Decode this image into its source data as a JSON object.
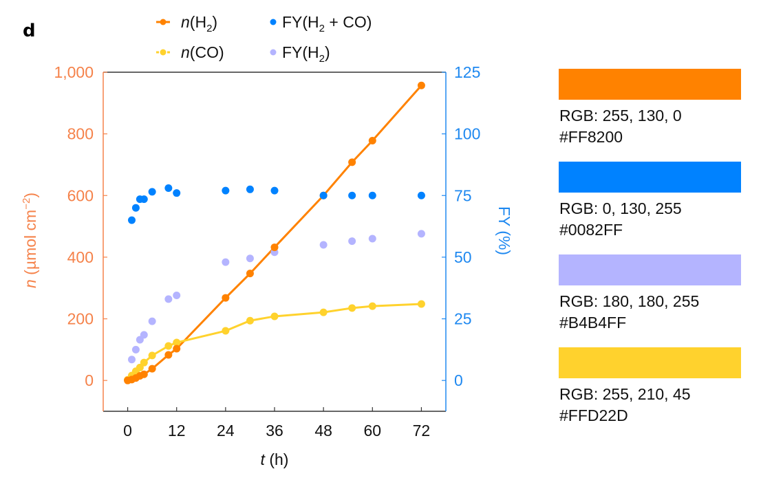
{
  "panel_label": "d",
  "chart_data": {
    "type": "line",
    "title": "",
    "xlabel": "t (h)",
    "xlabel_parts": {
      "italic": "t",
      "rest": " (h)"
    },
    "ylabel_left": "n (µmol cm−2)",
    "ylabel_right": "FY (%)",
    "xlim": [
      -6,
      78
    ],
    "ylim_left": [
      -100,
      1000
    ],
    "ylim_right": [
      -12.5,
      125
    ],
    "xticks": [
      0,
      12,
      24,
      36,
      48,
      60,
      72
    ],
    "yticks_left": [
      0,
      200,
      400,
      600,
      800,
      1000
    ],
    "yticks_left_labels": [
      "0",
      "200",
      "400",
      "600",
      "800",
      "1,000"
    ],
    "yticks_right": [
      0,
      25,
      50,
      75,
      100,
      125
    ],
    "grid": false,
    "legend_position": "top",
    "series": [
      {
        "name": "n(H2)",
        "axis": "left",
        "style": "line-marker",
        "color": "#FF8200",
        "x": [
          0,
          1,
          2,
          3,
          4,
          6,
          10,
          12,
          24,
          30,
          36,
          48,
          55,
          60,
          72
        ],
        "values": [
          0,
          3,
          8,
          15,
          20,
          38,
          83,
          103,
          268,
          347,
          432,
          600,
          708,
          778,
          957
        ]
      },
      {
        "name": "n(CO)",
        "axis": "left",
        "style": "line-marker",
        "color": "#FFD22D",
        "x": [
          0,
          1,
          2,
          3,
          4,
          6,
          10,
          12,
          24,
          30,
          36,
          48,
          55,
          60,
          72
        ],
        "values": [
          2,
          16,
          30,
          42,
          58,
          81,
          112,
          123,
          161,
          194,
          208,
          221,
          235,
          241,
          248
        ]
      },
      {
        "name": "FY(H2 + CO)",
        "axis": "right",
        "style": "marker",
        "color": "#0082FF",
        "x": [
          1,
          2,
          3,
          4,
          6,
          10,
          12,
          24,
          30,
          36,
          48,
          55,
          60,
          72
        ],
        "values": [
          65,
          70,
          73.5,
          73.5,
          76.5,
          78,
          76,
          77,
          77.5,
          77,
          75,
          75,
          75,
          75
        ]
      },
      {
        "name": "FY(H2)",
        "axis": "right",
        "style": "marker",
        "color": "#B4B4FF",
        "x": [
          1,
          2,
          3,
          4,
          6,
          10,
          12,
          24,
          30,
          36,
          48,
          55,
          60,
          72
        ],
        "values": [
          8.5,
          12.5,
          16.5,
          18.5,
          24,
          33,
          34.5,
          48,
          49.5,
          52,
          55,
          56.5,
          57.5,
          59.5
        ]
      }
    ],
    "axis_colors": {
      "left": "#F5824A",
      "right": "#1E88F0",
      "frame": "#333333"
    }
  },
  "legend": [
    {
      "prefix_italic": "n",
      "base": "(H",
      "sub": "2",
      "tail": ")"
    },
    {
      "prefix_italic": "n",
      "base": "(CO)",
      "sub": "",
      "tail": ""
    },
    {
      "prefix_italic": "",
      "base": "FY(H",
      "sub": "2",
      "tail": " + CO)"
    },
    {
      "prefix_italic": "",
      "base": "FY(H",
      "sub": "2",
      "tail": ")"
    }
  ],
  "ylabel_left_parts": {
    "italic": "n",
    "text": " (µmol cm",
    "sup": "−2",
    "close": ")"
  },
  "ylabel_right_text": "FY (%)",
  "swatches": [
    {
      "color": "#FF8200",
      "rgb": "RGB: 255, 130, 0",
      "hex": "#FF8200"
    },
    {
      "color": "#0082FF",
      "rgb": "RGB: 0, 130, 255",
      "hex": "#0082FF"
    },
    {
      "color": "#B4B4FF",
      "rgb": "RGB: 180, 180, 255",
      "hex": "#B4B4FF"
    },
    {
      "color": "#FFD22D",
      "rgb": "RGB: 255, 210, 45",
      "hex": "#FFD22D"
    }
  ]
}
